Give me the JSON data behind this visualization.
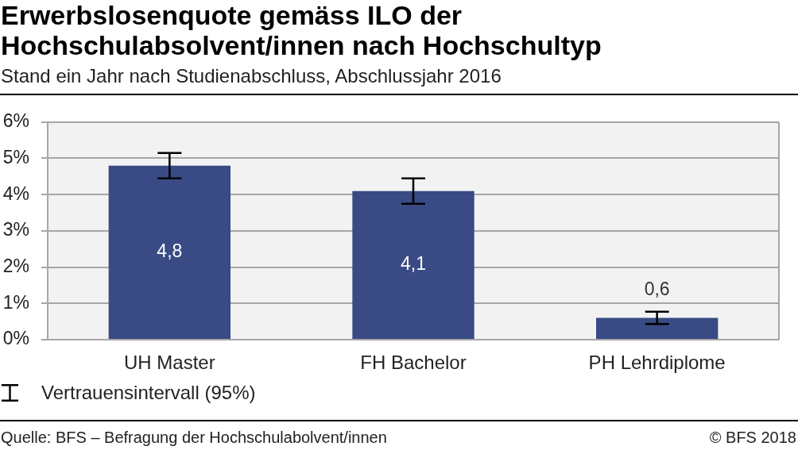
{
  "chart_data": {
    "type": "bar",
    "title": "Erwerbslosenquote gemäss ILO der Hochschulabsolvent/innen nach Hochschultyp",
    "subtitle": "Stand ein Jahr nach Studienabschluss, Abschlussjahr 2016",
    "categories": [
      "UH Master",
      "FH Bachelor",
      "PH Lehrdiplome"
    ],
    "values": [
      4.8,
      4.1,
      0.6
    ],
    "color": "#394a84",
    "errors": [
      0.35,
      0.35,
      0.17
    ],
    "value_labels": [
      "4,8",
      "4,1",
      "0,6"
    ],
    "ylim": [
      0,
      6
    ],
    "yticks": [
      {
        "value": 0,
        "label": "0%"
      },
      {
        "value": 1,
        "label": "1%"
      },
      {
        "value": 2,
        "label": "2%"
      },
      {
        "value": 3,
        "label": "3%"
      },
      {
        "value": 4,
        "label": "4%"
      },
      {
        "value": 5,
        "label": "5%"
      },
      {
        "value": 6,
        "label": "6%"
      }
    ],
    "grid": "y",
    "annotations": [
      "Vertrauensintervall (95%)",
      "Quelle: BFS – Befragung der Hochschulabolvent/innen",
      "© BFS 2018"
    ]
  }
}
